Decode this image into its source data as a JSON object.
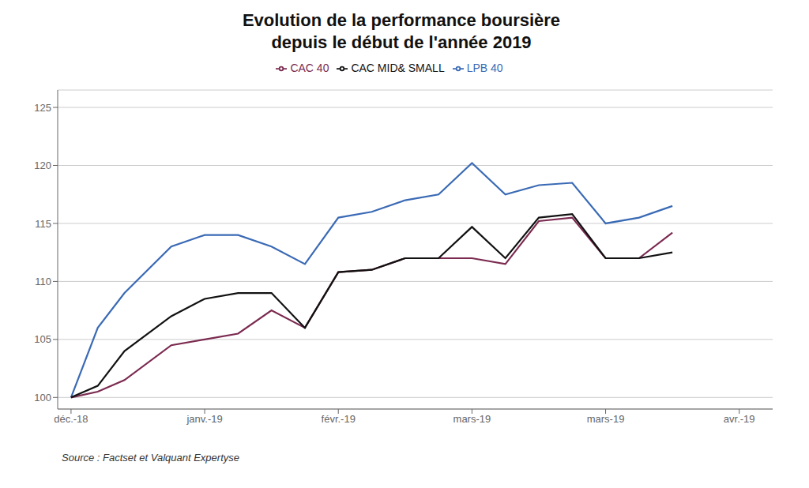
{
  "chart_data": {
    "type": "line",
    "title": "Evolution de la performance boursière",
    "subtitle": "depuis le début de l'année 2019",
    "annotations": [
      "Source : Factset et Valquant Expertyse"
    ],
    "x": [
      0,
      0.4,
      0.8,
      1.5,
      2.0,
      2.5,
      3.0,
      3.5,
      4.0,
      4.5,
      5.0,
      5.5,
      6.0,
      6.5,
      7.0,
      7.5,
      8.0,
      8.5,
      9.0
    ],
    "series": [
      {
        "name": "LPB 40",
        "color": "#3A6AB5",
        "values": [
          100,
          106,
          109,
          113,
          114,
          114,
          113,
          111.5,
          115.5,
          116,
          117,
          117.5,
          120.2,
          117.5,
          118.3,
          118.5,
          115.0,
          115.5,
          116.5
        ]
      },
      {
        "name": "CAC 40",
        "color": "#7B2A50",
        "values": [
          100,
          100.5,
          101.5,
          104.5,
          105.0,
          105.5,
          107.5,
          106.0,
          110.8,
          111.0,
          112.0,
          112.0,
          112.0,
          111.5,
          115.2,
          115.5,
          112.0,
          112.0,
          114.2
        ]
      },
      {
        "name": "CAC MID& SMALL",
        "color": "#111111",
        "values": [
          100,
          101.0,
          104.0,
          107.0,
          108.5,
          109.0,
          109.0,
          106.0,
          110.8,
          111.0,
          112.0,
          112.0,
          114.7,
          112.0,
          115.5,
          115.8,
          112.0,
          112.0,
          112.5
        ]
      }
    ],
    "xlim": [
      -0.2,
      10.5
    ],
    "xticks": [
      {
        "value": 0,
        "label": "déc.-18"
      },
      {
        "value": 2,
        "label": "janv.-19"
      },
      {
        "value": 4,
        "label": "févr.-19"
      },
      {
        "value": 6,
        "label": "mars-19"
      },
      {
        "value": 8,
        "label": "mars-19"
      },
      {
        "value": 10,
        "label": "avr.-19"
      }
    ],
    "ylim": [
      99.0,
      126.5
    ],
    "yticks": [
      100,
      105,
      110,
      115,
      120,
      125
    ],
    "grid": true,
    "legend": "top"
  }
}
